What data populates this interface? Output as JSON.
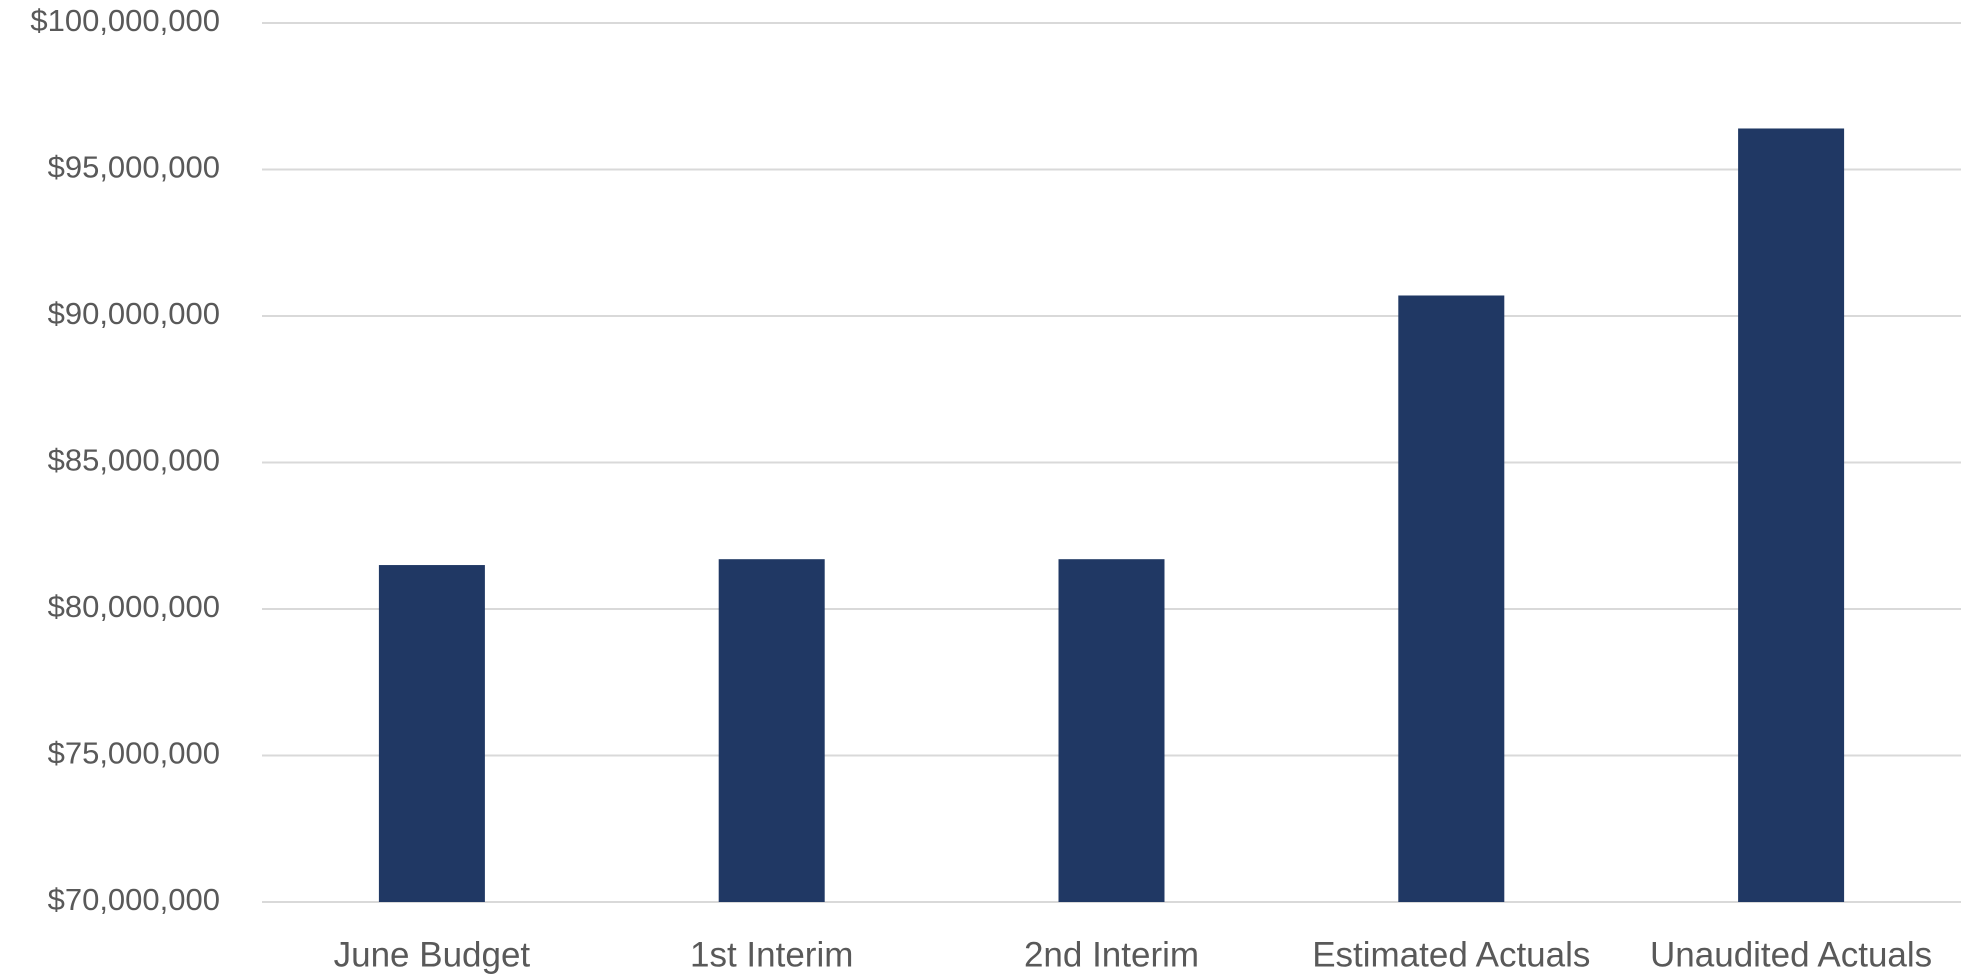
{
  "chart_data": {
    "type": "bar",
    "categories": [
      "June Budget",
      "1st Interim",
      "2nd Interim",
      "Estimated Actuals",
      "Unaudited Actuals"
    ],
    "values": [
      81500000,
      81700000,
      81700000,
      90700000,
      96400000
    ],
    "ylim": [
      70000000,
      100000000
    ],
    "ytick_values": [
      70000000,
      75000000,
      80000000,
      85000000,
      90000000,
      95000000,
      100000000
    ],
    "ytick_labels": [
      "$70,000,000",
      "$75,000,000",
      "$80,000,000",
      "$85,000,000",
      "$90,000,000",
      "$95,000,000",
      "$100,000,000"
    ],
    "grid": true,
    "legend": "none",
    "bar_color": "#203864",
    "grid_color": "#d9d9d9",
    "title": "",
    "xlabel": "",
    "ylabel": ""
  }
}
